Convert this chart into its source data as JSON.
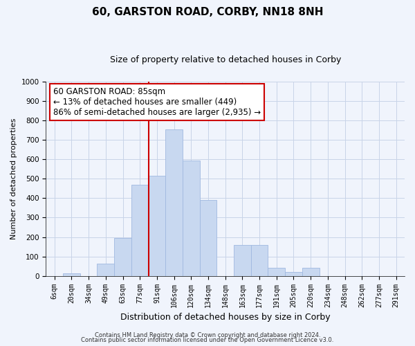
{
  "title": "60, GARSTON ROAD, CORBY, NN18 8NH",
  "subtitle": "Size of property relative to detached houses in Corby",
  "xlabel": "Distribution of detached houses by size in Corby",
  "ylabel": "Number of detached properties",
  "categories": [
    "6sqm",
    "20sqm",
    "34sqm",
    "49sqm",
    "63sqm",
    "77sqm",
    "91sqm",
    "106sqm",
    "120sqm",
    "134sqm",
    "148sqm",
    "163sqm",
    "177sqm",
    "191sqm",
    "205sqm",
    "220sqm",
    "234sqm",
    "248sqm",
    "262sqm",
    "277sqm",
    "291sqm"
  ],
  "values": [
    0,
    12,
    0,
    62,
    195,
    470,
    515,
    755,
    595,
    390,
    0,
    160,
    160,
    42,
    22,
    42,
    0,
    0,
    0,
    0,
    0
  ],
  "bar_color": "#c8d8f0",
  "bar_edge_color": "#a0b8e0",
  "vline_idx": 6,
  "vline_color": "#cc0000",
  "annotation_line1": "60 GARSTON ROAD: 85sqm",
  "annotation_line2": "← 13% of detached houses are smaller (449)",
  "annotation_line3": "86% of semi-detached houses are larger (2,935) →",
  "annotation_box_color": "white",
  "annotation_box_edgecolor": "#cc0000",
  "ylim": [
    0,
    1000
  ],
  "yticks": [
    0,
    100,
    200,
    300,
    400,
    500,
    600,
    700,
    800,
    900,
    1000
  ],
  "footer1": "Contains HM Land Registry data © Crown copyright and database right 2024.",
  "footer2": "Contains public sector information licensed under the Open Government Licence v3.0.",
  "bg_color": "#f0f4fc",
  "grid_color": "#c8d4e8",
  "title_fontsize": 11,
  "subtitle_fontsize": 9,
  "tick_fontsize": 7,
  "ylabel_fontsize": 8,
  "xlabel_fontsize": 9,
  "annotation_fontsize": 8.5,
  "footer_fontsize": 6
}
